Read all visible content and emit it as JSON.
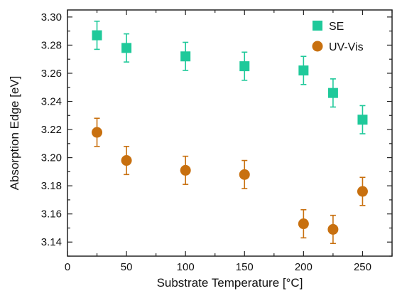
{
  "chart_data": {
    "type": "scatter",
    "title": "",
    "xlabel": "Substrate Temperature [°C]",
    "ylabel": "Absorption Edge [eV]",
    "xlim": [
      0,
      275
    ],
    "ylim": [
      3.13,
      3.305
    ],
    "xticks": [
      0,
      50,
      100,
      150,
      200,
      250
    ],
    "xtick_labels": [
      "0",
      "50",
      "100",
      "150",
      "200",
      "250"
    ],
    "yticks": [
      3.14,
      3.16,
      3.18,
      3.2,
      3.22,
      3.24,
      3.26,
      3.28,
      3.3
    ],
    "ytick_labels": [
      "3.14",
      "3.16",
      "3.18",
      "3.20",
      "3.22",
      "3.24",
      "3.26",
      "3.28",
      "3.30"
    ],
    "grid": false,
    "legend_position": "top-right",
    "series": [
      {
        "name": "SE",
        "marker": "square",
        "color": "#1fc99a",
        "x": [
          25,
          50,
          100,
          150,
          200,
          225,
          250
        ],
        "y": [
          3.287,
          3.278,
          3.272,
          3.265,
          3.262,
          3.246,
          3.227
        ],
        "error": [
          0.01,
          0.01,
          0.01,
          0.01,
          0.01,
          0.01,
          0.01
        ]
      },
      {
        "name": "UV-Vis",
        "marker": "circle",
        "color": "#c8700f",
        "x": [
          25,
          50,
          100,
          150,
          200,
          225,
          250
        ],
        "y": [
          3.218,
          3.198,
          3.191,
          3.188,
          3.153,
          3.149,
          3.176
        ],
        "error": [
          0.01,
          0.01,
          0.01,
          0.01,
          0.01,
          0.01,
          0.01
        ]
      }
    ]
  }
}
